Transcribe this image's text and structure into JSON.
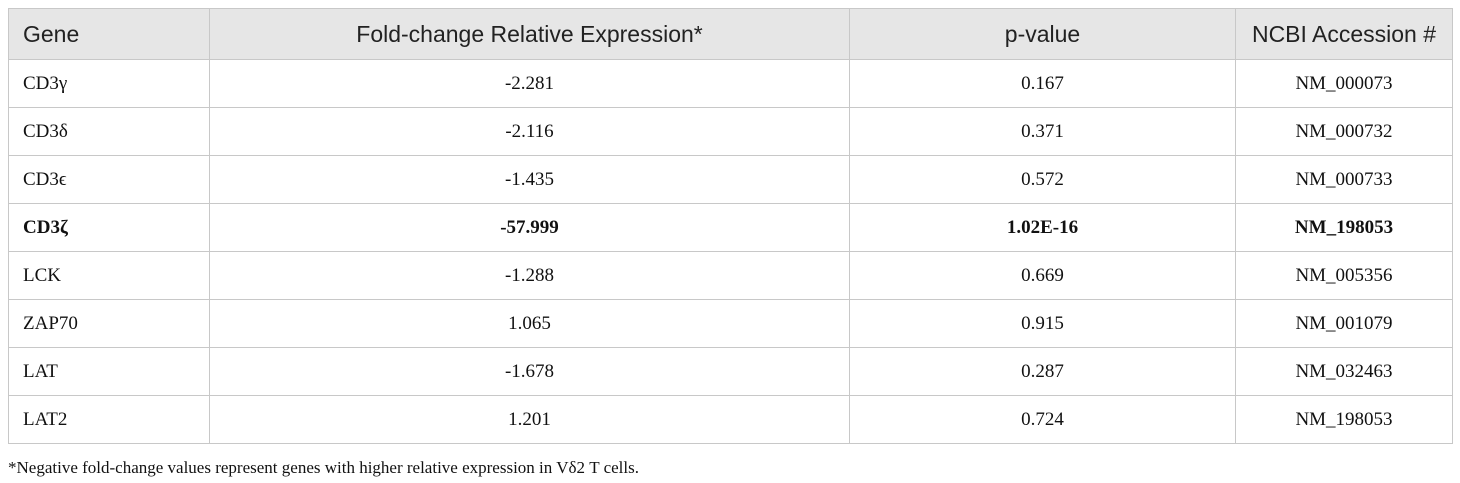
{
  "table": {
    "headers": [
      "Gene",
      "Fold-change Relative Expression*",
      "p-value",
      "NCBI Accession #"
    ],
    "rows": [
      {
        "gene": "CD3γ",
        "fold_change": "-2.281",
        "p_value": "0.167",
        "accession": "NM_000073",
        "bold": false
      },
      {
        "gene": "CD3δ",
        "fold_change": "-2.116",
        "p_value": "0.371",
        "accession": "NM_000732",
        "bold": false
      },
      {
        "gene": "CD3ϵ",
        "fold_change": "-1.435",
        "p_value": "0.572",
        "accession": "NM_000733",
        "bold": false
      },
      {
        "gene": "CD3ζ",
        "fold_change": "-57.999",
        "p_value": "1.02E-16",
        "accession": "NM_198053",
        "bold": true
      },
      {
        "gene": "LCK",
        "fold_change": "-1.288",
        "p_value": "0.669",
        "accession": "NM_005356",
        "bold": false
      },
      {
        "gene": "ZAP70",
        "fold_change": "1.065",
        "p_value": "0.915",
        "accession": "NM_001079",
        "bold": false
      },
      {
        "gene": "LAT",
        "fold_change": "-1.678",
        "p_value": "0.287",
        "accession": "NM_032463",
        "bold": false
      },
      {
        "gene": "LAT2",
        "fold_change": "1.201",
        "p_value": "0.724",
        "accession": "NM_198053",
        "bold": false
      }
    ]
  },
  "footnote": "*Negative fold-change values represent genes with higher relative expression in Vδ2 T cells."
}
